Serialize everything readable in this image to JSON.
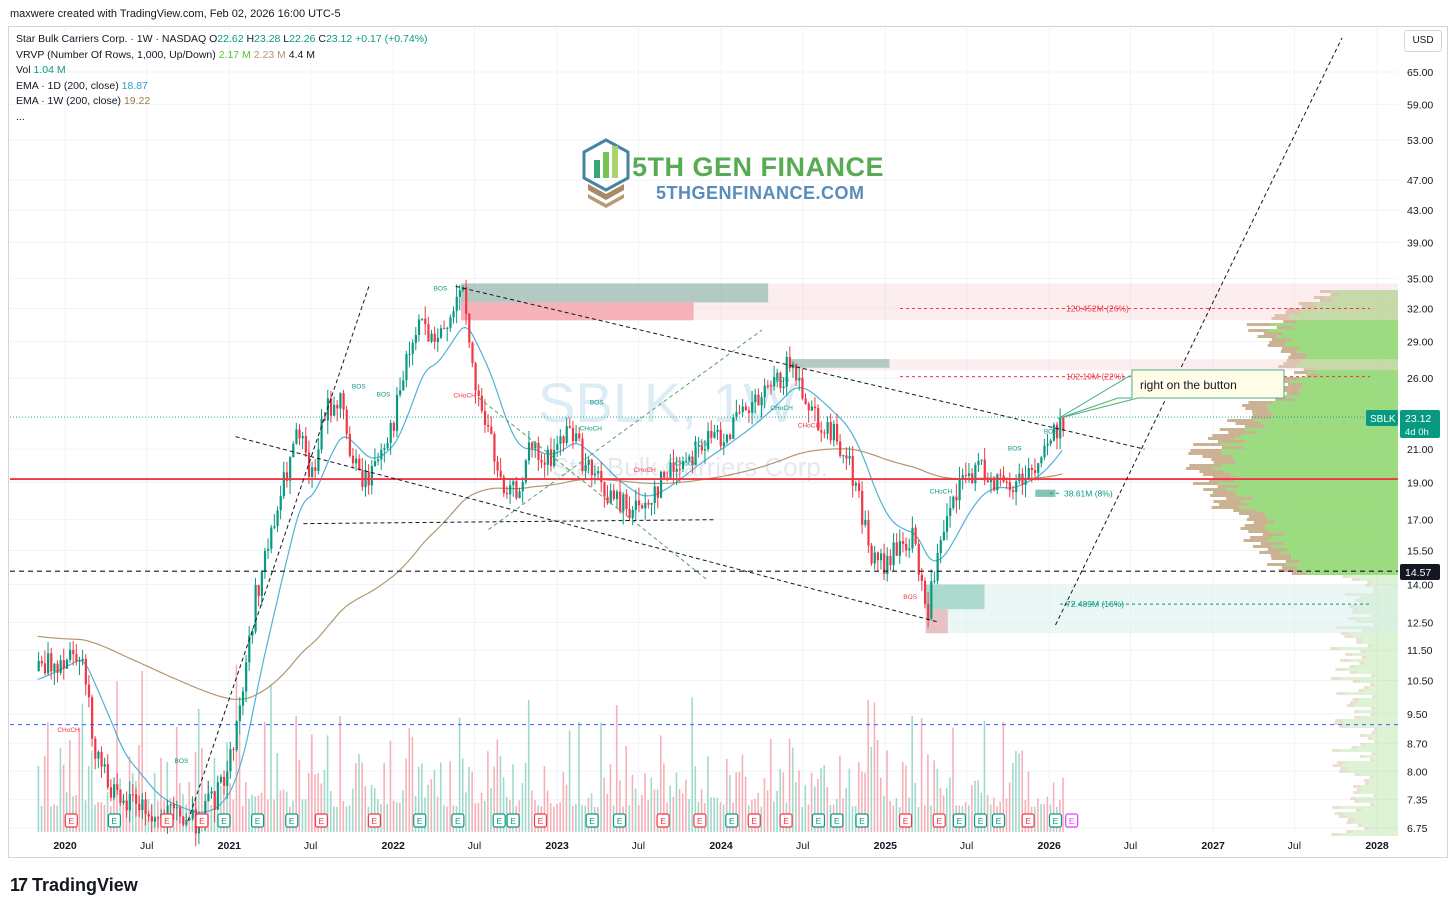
{
  "header": {
    "credit": "maxwere created with TradingView.com, Feb 02, 2026 16:00 UTC-5"
  },
  "legend": {
    "symbol_line": "Star Bulk Carriers Corp. · 1W · NASDAQ",
    "o_label": "O",
    "o": "22.62",
    "h_label": "H",
    "h": "23.28",
    "l_label": "L",
    "l": "22.26",
    "c_label": "C",
    "c": "23.12",
    "change": "+0.17 (+0.74%)",
    "vrvp_label": "VRVP (Number Of Rows, 1,000, Up/Down)",
    "vrvp_up": "2.17 M",
    "vrvp_down": "2.23 M",
    "vrvp_total": "4.4 M",
    "vol_label": "Vol",
    "vol_value": "1.04 M",
    "ema1_label": "EMA · 1D (200, close)",
    "ema1_value": "18.87",
    "ema2_label": "EMA · 1W (200, close)",
    "ema2_value": "19.22",
    "more": "..."
  },
  "currency_button": "USD",
  "watermark": {
    "brand": "5TH GEN FINANCE",
    "url": "5THGENFINANCE.COM",
    "ticker": "SBLK, 1W",
    "name": "Star Bulk Carriers Corp."
  },
  "price_badge": {
    "ticker": "SBLK",
    "price": "23.12",
    "countdown": "4d 0h"
  },
  "level_badge": "14.57",
  "callout": "right on the button",
  "footer_brand": "TradingView",
  "colors": {
    "up": "#089981",
    "down": "#f23645",
    "ema_short": "#4fb3d6",
    "ema_long": "#b39670",
    "support": "#f23645",
    "vp_up": "#7ccf55",
    "vp_down": "#b9986e"
  },
  "chart_data": {
    "type": "candlestick",
    "symbol": "SBLK",
    "interval": "1W",
    "exchange": "NASDAQ",
    "y_scale": "log",
    "ylim": [
      6.75,
      72
    ],
    "y_ticks": [
      "65.00",
      "59.00",
      "53.00",
      "47.00",
      "43.00",
      "39.00",
      "35.00",
      "32.00",
      "29.00",
      "26.00",
      "21.00",
      "19.00",
      "17.00",
      "15.50",
      "14.00",
      "12.50",
      "11.50",
      "10.50",
      "9.50",
      "8.70",
      "8.00",
      "7.35",
      "6.75"
    ],
    "x_ticks": [
      "2020",
      "Jul",
      "2021",
      "Jul",
      "2022",
      "Jul",
      "2023",
      "Jul",
      "2024",
      "Jul",
      "2025",
      "Jul",
      "2026",
      "Jul",
      "2027",
      "Jul",
      "2028"
    ],
    "price_path": [
      [
        "2019-11-01",
        10.8
      ],
      [
        "2019-12-15",
        11.2
      ],
      [
        "2020-02-01",
        11.6
      ],
      [
        "2020-03-01",
        8.8
      ],
      [
        "2020-04-01",
        7.9
      ],
      [
        "2020-05-01",
        7.1
      ],
      [
        "2020-06-01",
        7.4
      ],
      [
        "2020-07-15",
        6.9
      ],
      [
        "2020-09-01",
        7.0
      ],
      [
        "2020-10-15",
        6.9
      ],
      [
        "2020-12-01",
        7.4
      ],
      [
        "2021-01-01",
        8.3
      ],
      [
        "2021-02-01",
        10.5
      ],
      [
        "2021-03-01",
        13.8
      ],
      [
        "2021-04-01",
        16.0
      ],
      [
        "2021-05-01",
        19.0
      ],
      [
        "2021-06-01",
        22.0
      ],
      [
        "2021-07-01",
        19.0
      ],
      [
        "2021-08-01",
        23.5
      ],
      [
        "2021-09-01",
        24.5
      ],
      [
        "2021-10-01",
        20.0
      ],
      [
        "2021-11-01",
        19.0
      ],
      [
        "2021-12-01",
        21.0
      ],
      [
        "2022-01-01",
        23.0
      ],
      [
        "2022-02-01",
        27.5
      ],
      [
        "2022-03-01",
        31.0
      ],
      [
        "2022-04-01",
        28.0
      ],
      [
        "2022-05-01",
        31.5
      ],
      [
        "2022-06-01",
        33.5
      ],
      [
        "2022-07-01",
        25.0
      ],
      [
        "2022-08-01",
        22.0
      ],
      [
        "2022-09-01",
        18.0
      ],
      [
        "2022-10-01",
        18.5
      ],
      [
        "2022-11-01",
        21.0
      ],
      [
        "2022-12-01",
        20.0
      ],
      [
        "2023-02-01",
        22.5
      ],
      [
        "2023-03-01",
        20.0
      ],
      [
        "2023-05-01",
        18.0
      ],
      [
        "2023-07-01",
        17.5
      ],
      [
        "2023-09-01",
        19.5
      ],
      [
        "2023-11-01",
        21.0
      ],
      [
        "2024-01-01",
        22.0
      ],
      [
        "2024-03-01",
        23.5
      ],
      [
        "2024-05-01",
        25.5
      ],
      [
        "2024-06-01",
        27.0
      ],
      [
        "2024-07-01",
        25.0
      ],
      [
        "2024-08-01",
        23.0
      ],
      [
        "2024-09-01",
        22.0
      ],
      [
        "2024-10-01",
        21.0
      ],
      [
        "2024-11-01",
        18.0
      ],
      [
        "2024-12-01",
        15.0
      ],
      [
        "2025-01-01",
        14.8
      ],
      [
        "2025-02-01",
        15.8
      ],
      [
        "2025-03-01",
        16.0
      ],
      [
        "2025-04-01",
        12.8
      ],
      [
        "2025-05-01",
        15.5
      ],
      [
        "2025-06-01",
        18.0
      ],
      [
        "2025-07-01",
        19.5
      ],
      [
        "2025-08-01",
        19.8
      ],
      [
        "2025-09-01",
        19.2
      ],
      [
        "2025-10-01",
        18.5
      ],
      [
        "2025-11-01",
        19.5
      ],
      [
        "2025-12-01",
        20.0
      ],
      [
        "2026-01-01",
        21.5
      ],
      [
        "2026-02-01",
        23.12
      ]
    ],
    "indicators": [
      "EMA 1D (200, close) 18.87",
      "EMA 1W (200, close) 19.22",
      "VRVP",
      "Vol"
    ],
    "levels": [
      {
        "label": "support",
        "value": 19.2
      },
      {
        "label": "14.57",
        "value": 14.57
      },
      {
        "label": "",
        "value": 9.2
      }
    ],
    "annotations": {
      "zone_labels": [
        "120.452M (26%)",
        "102.19M (22%)",
        "38.61M (8%)",
        "72.489M (16%)"
      ],
      "structure_labels": [
        "BOS",
        "BOS",
        "BOS",
        "BOS",
        "BOS",
        "BOS",
        "BOS",
        "BOS",
        "BOS",
        "BOS",
        "CHoCH",
        "CHoCH",
        "CHoCH",
        "CHoCH",
        "CHoCH",
        "CHoCH",
        "CHoCH",
        "CHoCH"
      ]
    },
    "earnings_marker": "E"
  }
}
